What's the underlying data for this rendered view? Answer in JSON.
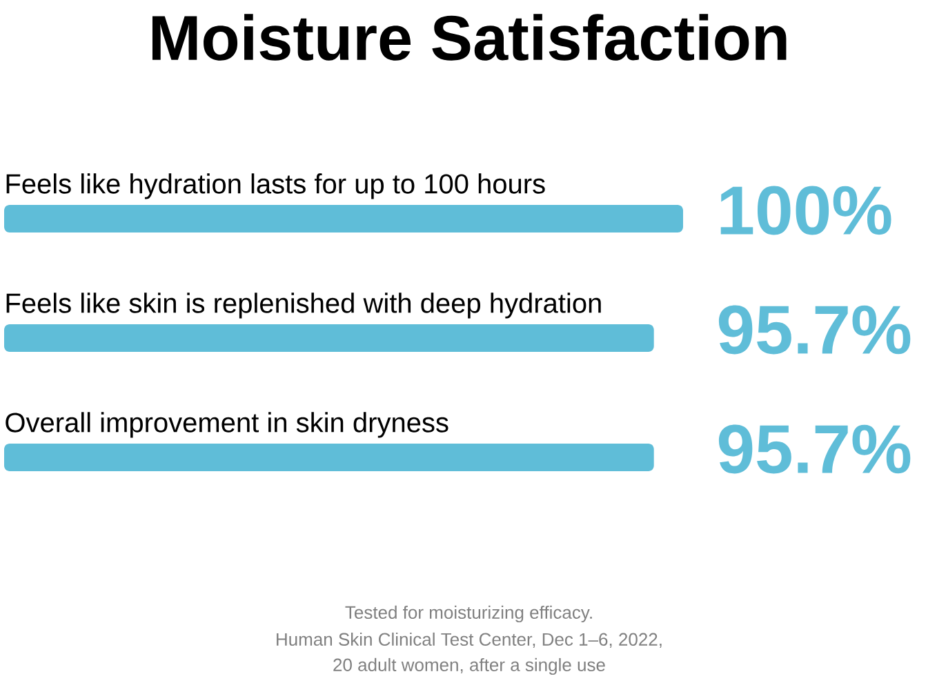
{
  "chart_data": {
    "type": "bar",
    "orientation": "horizontal",
    "title": "Moisture Satisfaction",
    "categories": [
      "Feels like hydration lasts for up to 100 hours",
      "Feels like skin is replenished with deep hydration",
      "Overall improvement in skin dryness"
    ],
    "values": [
      100,
      95.7,
      95.7
    ],
    "value_labels": [
      "100%",
      "95.7%",
      "95.7%"
    ],
    "color": "#5fbdd8",
    "annotations": [
      "Tested for moisturizing efficacy.",
      "Human Skin Clinical Test Center, Dec 1–6, 2022,",
      "20 adult women, after a single use"
    ]
  }
}
